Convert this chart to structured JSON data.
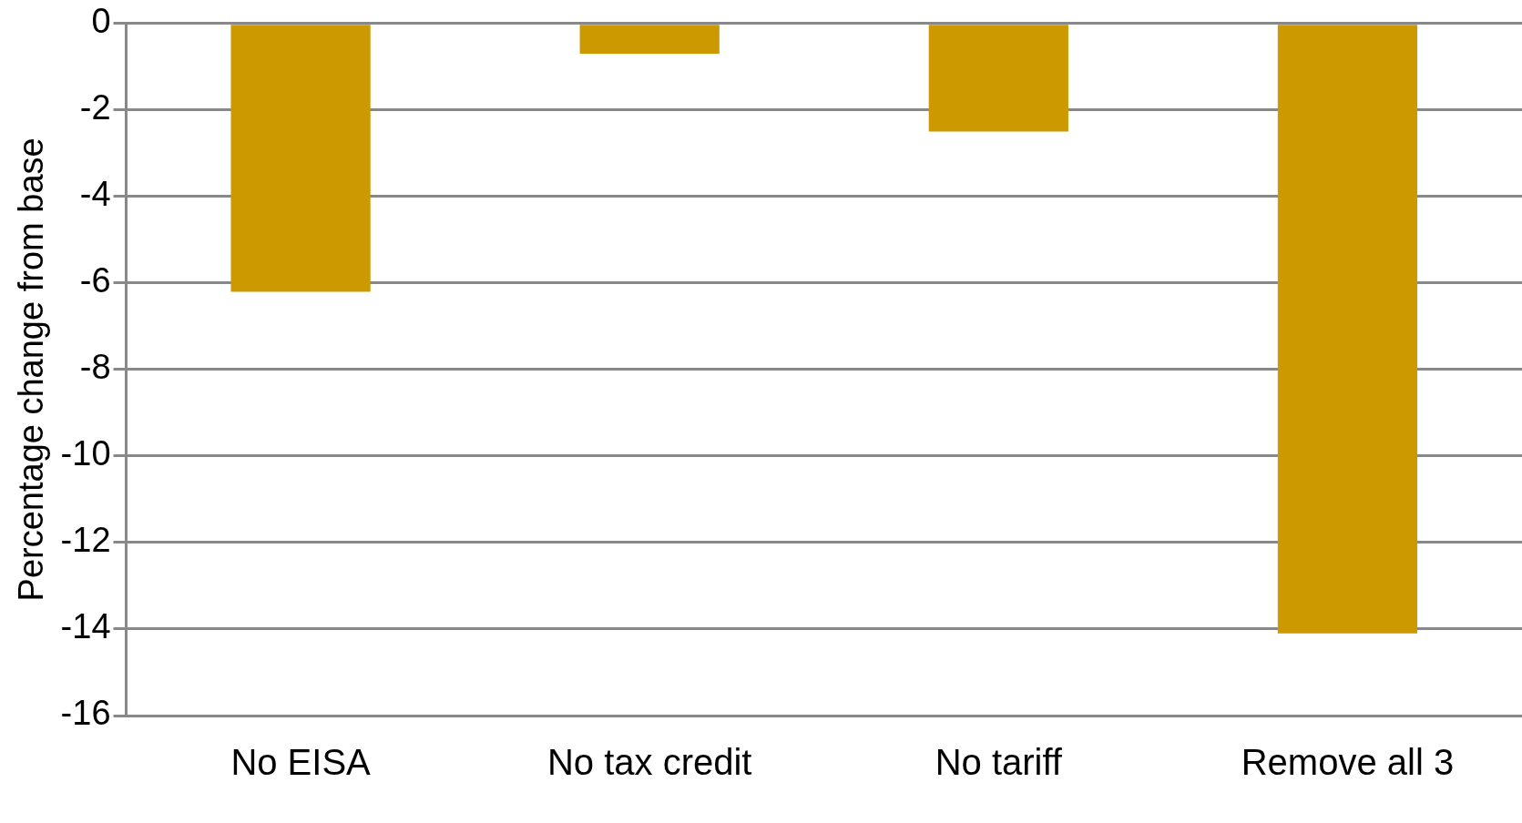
{
  "chart_data": {
    "type": "bar",
    "ylabel": "Percentage change from base",
    "categories": [
      "No EISA",
      "No tax credit",
      "No tariff",
      "Remove all 3"
    ],
    "values": [
      -6.2,
      -0.7,
      -2.5,
      -14.1
    ],
    "color": "#cc9900",
    "ylim": [
      -16,
      0
    ],
    "yticks": [
      -16,
      -14,
      -12,
      -10,
      -8,
      -6,
      -4,
      -2,
      0
    ],
    "grid": "y",
    "legend": false
  }
}
